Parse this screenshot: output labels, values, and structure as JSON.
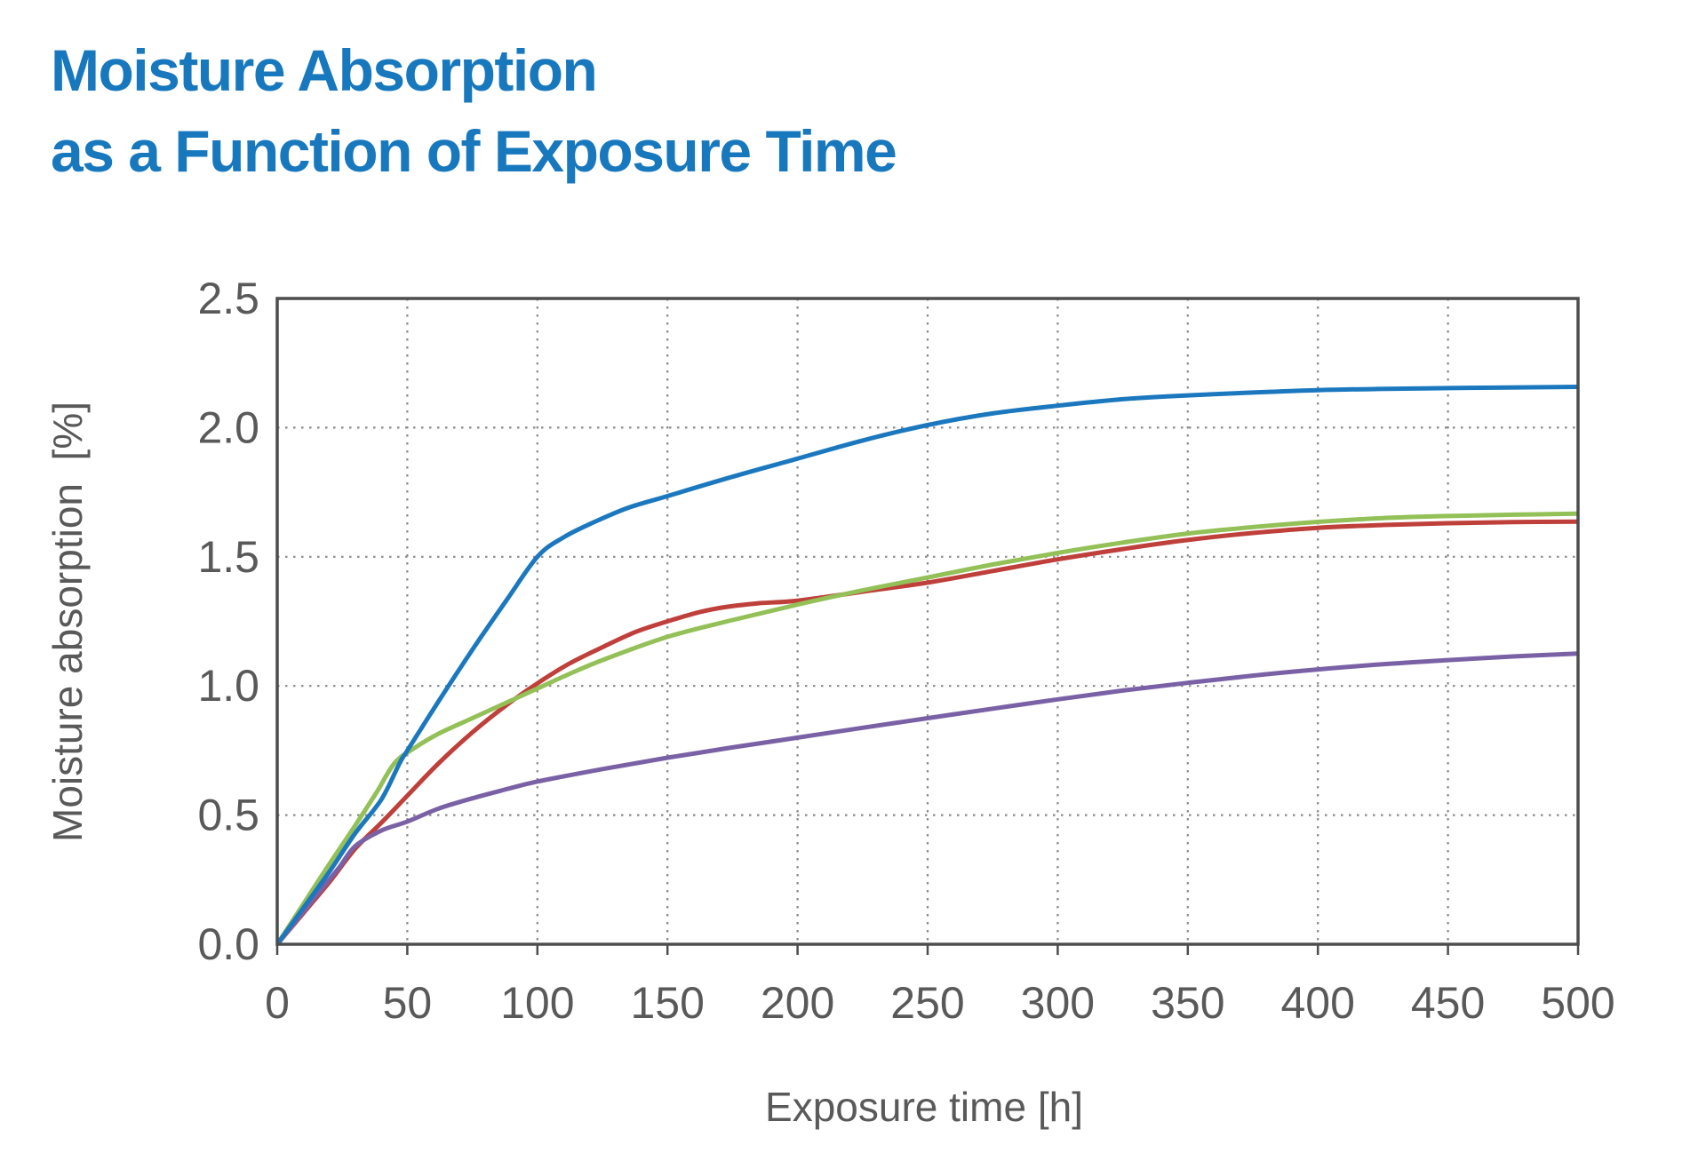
{
  "title": {
    "line1": "Moisture Absorption",
    "line2": "as a Function of Exposure Time"
  },
  "colors": {
    "title": "#1878be",
    "axis_text": "#595959",
    "spine": "#4d4d4d",
    "grid": "#8a8a8a",
    "background": "#ffffff"
  },
  "chart_data": {
    "type": "line",
    "title": "Moisture Absorption as a Function of Exposure Time",
    "xlabel": "Exposure time [h]",
    "ylabel": "Moisture absorption  [%]",
    "xlim": [
      0,
      500
    ],
    "ylim": [
      0,
      2.5
    ],
    "x_ticks": [
      0,
      50,
      100,
      150,
      200,
      250,
      300,
      350,
      400,
      450,
      500
    ],
    "y_ticks": [
      0,
      0.5,
      1,
      1.5,
      2,
      2.5
    ],
    "grid": "dotted",
    "legend": "none",
    "series": [
      {
        "id": "red",
        "color": "#bf3f3a",
        "points": [
          [
            0,
            0
          ],
          [
            10,
            0.12
          ],
          [
            20,
            0.24
          ],
          [
            30,
            0.37
          ],
          [
            40,
            0.47
          ],
          [
            50,
            0.575
          ],
          [
            62,
            0.7
          ],
          [
            75,
            0.82
          ],
          [
            88,
            0.925
          ],
          [
            100,
            1.01
          ],
          [
            112,
            1.085
          ],
          [
            125,
            1.15
          ],
          [
            138,
            1.21
          ],
          [
            150,
            1.25
          ],
          [
            162,
            1.285
          ],
          [
            172,
            1.305
          ],
          [
            185,
            1.32
          ],
          [
            200,
            1.33
          ],
          [
            225,
            1.365
          ],
          [
            250,
            1.4
          ],
          [
            275,
            1.445
          ],
          [
            300,
            1.49
          ],
          [
            325,
            1.53
          ],
          [
            350,
            1.565
          ],
          [
            375,
            1.592
          ],
          [
            400,
            1.612
          ],
          [
            425,
            1.623
          ],
          [
            450,
            1.63
          ],
          [
            475,
            1.634
          ],
          [
            500,
            1.636
          ]
        ]
      },
      {
        "id": "green",
        "color": "#93c057",
        "points": [
          [
            0,
            0
          ],
          [
            10,
            0.155
          ],
          [
            20,
            0.31
          ],
          [
            30,
            0.46
          ],
          [
            38,
            0.585
          ],
          [
            45,
            0.7
          ],
          [
            52,
            0.755
          ],
          [
            62,
            0.815
          ],
          [
            75,
            0.875
          ],
          [
            88,
            0.935
          ],
          [
            100,
            0.99
          ],
          [
            112,
            1.045
          ],
          [
            125,
            1.1
          ],
          [
            150,
            1.19
          ],
          [
            175,
            1.255
          ],
          [
            200,
            1.315
          ],
          [
            225,
            1.37
          ],
          [
            250,
            1.42
          ],
          [
            275,
            1.47
          ],
          [
            300,
            1.515
          ],
          [
            325,
            1.555
          ],
          [
            350,
            1.59
          ],
          [
            375,
            1.615
          ],
          [
            400,
            1.635
          ],
          [
            425,
            1.65
          ],
          [
            450,
            1.658
          ],
          [
            475,
            1.663
          ],
          [
            500,
            1.667
          ]
        ]
      },
      {
        "id": "purple",
        "color": "#7a61a5",
        "points": [
          [
            0,
            0
          ],
          [
            8,
            0.1
          ],
          [
            16,
            0.2
          ],
          [
            24,
            0.3
          ],
          [
            30,
            0.38
          ],
          [
            40,
            0.44
          ],
          [
            50,
            0.475
          ],
          [
            62,
            0.525
          ],
          [
            75,
            0.565
          ],
          [
            88,
            0.6
          ],
          [
            100,
            0.63
          ],
          [
            125,
            0.678
          ],
          [
            150,
            0.722
          ],
          [
            175,
            0.762
          ],
          [
            200,
            0.8
          ],
          [
            225,
            0.838
          ],
          [
            250,
            0.875
          ],
          [
            275,
            0.912
          ],
          [
            300,
            0.948
          ],
          [
            325,
            0.982
          ],
          [
            350,
            1.012
          ],
          [
            375,
            1.04
          ],
          [
            400,
            1.064
          ],
          [
            425,
            1.084
          ],
          [
            450,
            1.1
          ],
          [
            475,
            1.114
          ],
          [
            500,
            1.125
          ]
        ]
      },
      {
        "id": "blue",
        "color": "#1b78be",
        "points": [
          [
            0,
            0
          ],
          [
            10,
            0.14
          ],
          [
            20,
            0.28
          ],
          [
            30,
            0.43
          ],
          [
            40,
            0.56
          ],
          [
            47,
            0.7
          ],
          [
            50,
            0.75
          ],
          [
            62,
            0.94
          ],
          [
            75,
            1.14
          ],
          [
            88,
            1.33
          ],
          [
            100,
            1.5
          ],
          [
            110,
            1.575
          ],
          [
            122,
            1.635
          ],
          [
            135,
            1.69
          ],
          [
            150,
            1.735
          ],
          [
            175,
            1.81
          ],
          [
            200,
            1.88
          ],
          [
            225,
            1.95
          ],
          [
            250,
            2.01
          ],
          [
            275,
            2.055
          ],
          [
            300,
            2.085
          ],
          [
            325,
            2.11
          ],
          [
            350,
            2.125
          ],
          [
            400,
            2.145
          ],
          [
            450,
            2.153
          ],
          [
            500,
            2.158
          ]
        ]
      }
    ]
  }
}
